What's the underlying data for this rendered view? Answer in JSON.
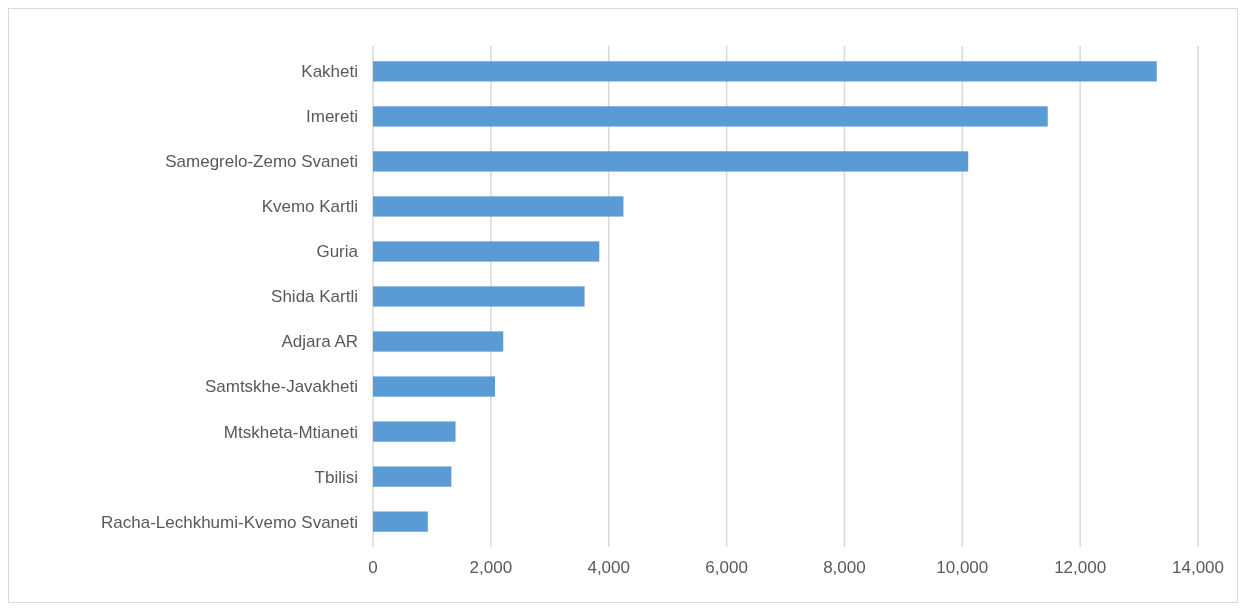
{
  "chart_data": {
    "type": "bar",
    "orientation": "horizontal",
    "categories": [
      "Kakheti",
      "Imereti",
      "Samegrelo-Zemo Svaneti",
      "Kvemo Kartli",
      "Guria",
      "Shida Kartli",
      "Adjara AR",
      "Samtskhe-Javakheti",
      "Mtskheta-Mtianeti",
      "Tbilisi",
      "Racha-Lechkhumi-Kvemo Svaneti"
    ],
    "values": [
      13300,
      11450,
      10100,
      4250,
      3840,
      3590,
      2210,
      2070,
      1400,
      1330,
      930
    ],
    "color": "#5b9bd5",
    "xlim": [
      0,
      14000
    ],
    "xticks": [
      {
        "value": 0,
        "label": "0"
      },
      {
        "value": 2000,
        "label": "2,000"
      },
      {
        "value": 4000,
        "label": "4,000"
      },
      {
        "value": 6000,
        "label": "6,000"
      },
      {
        "value": 8000,
        "label": "8,000"
      },
      {
        "value": 10000,
        "label": "10,000"
      },
      {
        "value": 12000,
        "label": "12,000"
      },
      {
        "value": 14000,
        "label": "14,000"
      }
    ],
    "grid": "x"
  }
}
